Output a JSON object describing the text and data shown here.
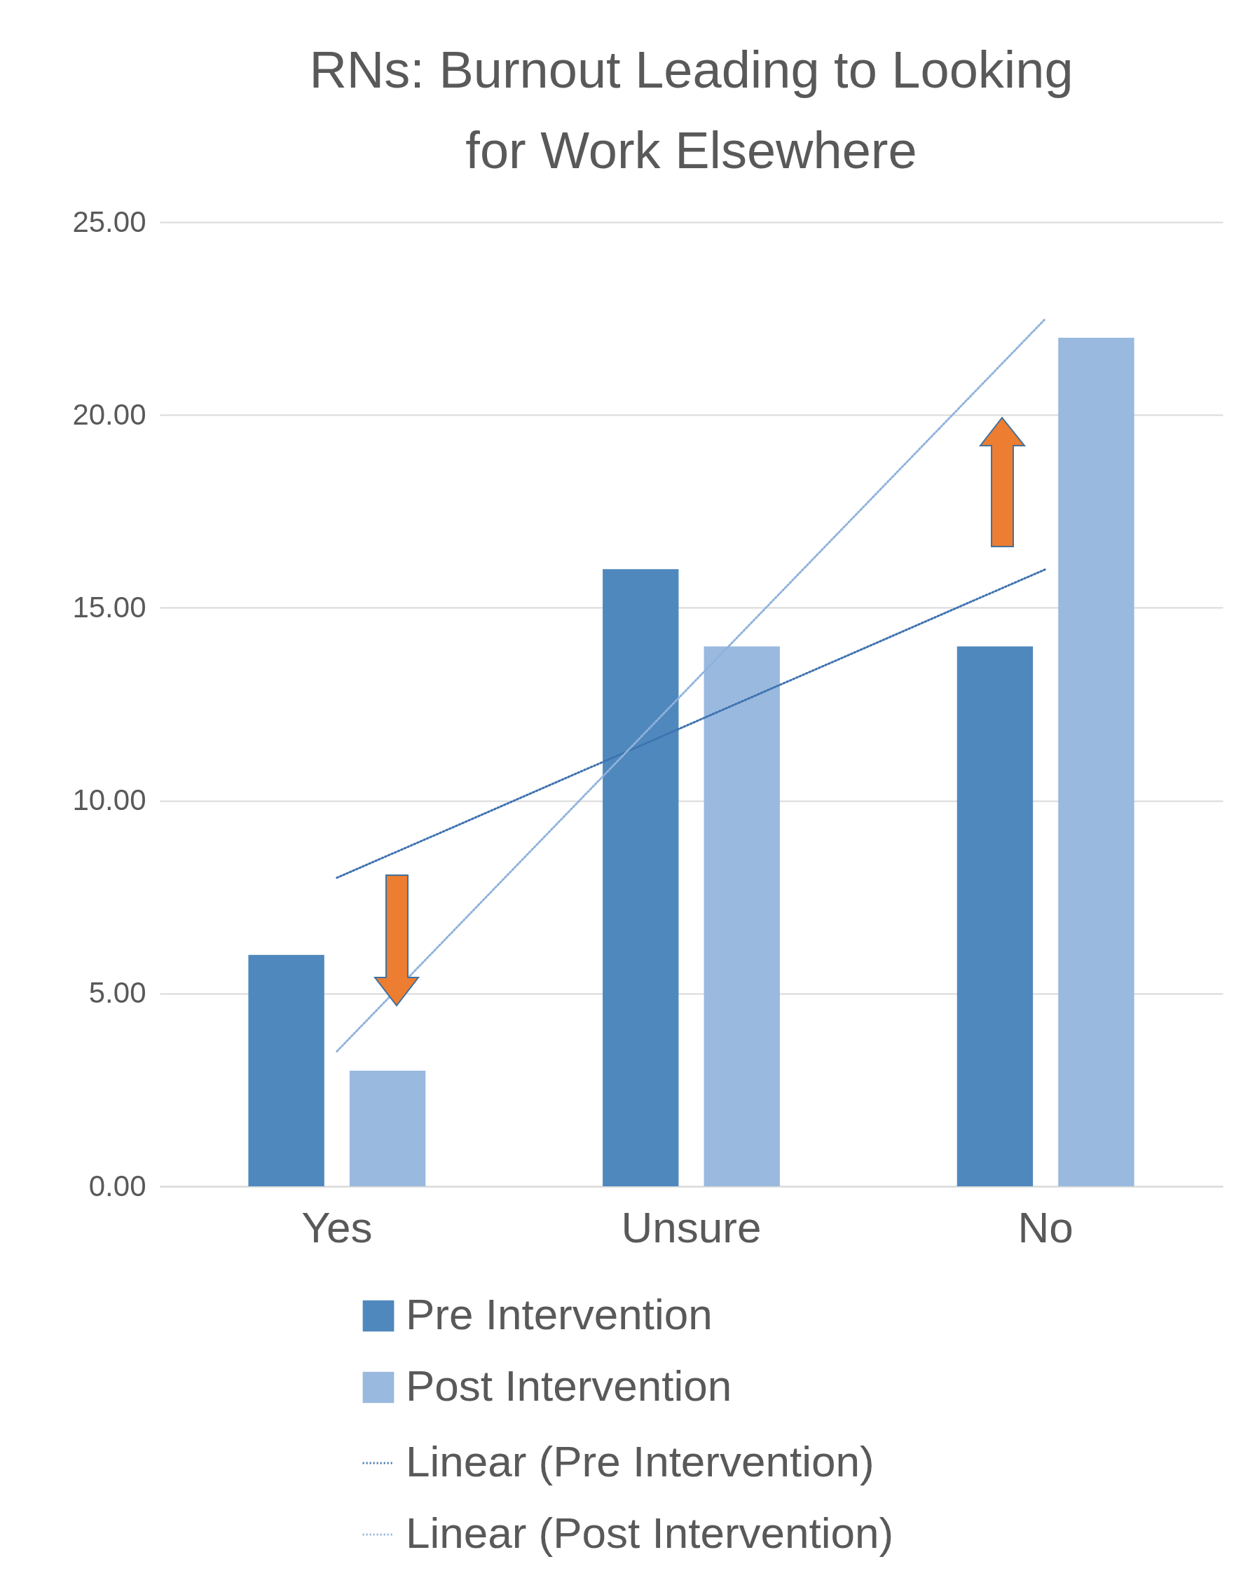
{
  "chart_data": {
    "type": "bar",
    "title": "RNs: Burnout Leading to Looking for Work Elsewhere",
    "categories": [
      "Yes",
      "Unsure",
      "No"
    ],
    "series": [
      {
        "name": "Pre Intervention",
        "color": "#4f88bd",
        "values": [
          6,
          16,
          14
        ]
      },
      {
        "name": "Post Intervention",
        "color": "#99b9df",
        "values": [
          3,
          14,
          22
        ]
      },
      {
        "name": "Linear (Pre Intervention)",
        "type": "line",
        "color": "#3d72b0",
        "line_style": "dotted",
        "x": [
          "Yes",
          "No"
        ],
        "values": [
          8,
          16
        ]
      },
      {
        "name": "Linear (Post Intervention)",
        "type": "line",
        "color": "#8fb2dc",
        "line_style": "dotted",
        "x": [
          "Yes",
          "No"
        ],
        "values": [
          3.5,
          22.5
        ]
      }
    ],
    "ylim": [
      0,
      25
    ],
    "yticks": [
      {
        "value": 0,
        "label": "0.00"
      },
      {
        "value": 5,
        "label": "5.00"
      },
      {
        "value": 10,
        "label": "10.00"
      },
      {
        "value": 15,
        "label": "15.00"
      },
      {
        "value": 20,
        "label": "20.00"
      },
      {
        "value": 25,
        "label": "25.00"
      }
    ],
    "grid": "y",
    "legend": "bottom"
  }
}
